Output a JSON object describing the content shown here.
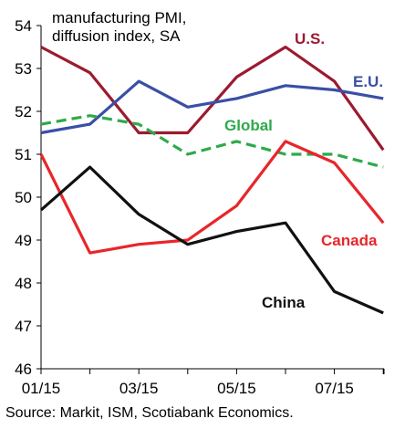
{
  "chart_data": {
    "type": "line",
    "title": "",
    "subtitle_lines": [
      "manufacturing PMI,",
      "diffusion index, SA"
    ],
    "xlabel": "",
    "ylabel": "",
    "x": [
      "01/15",
      "02/15",
      "03/15",
      "04/15",
      "05/15",
      "06/15",
      "07/15",
      "08/15"
    ],
    "x_tick_labels": [
      "01/15",
      "",
      "03/15",
      "",
      "05/15",
      "",
      "07/15",
      ""
    ],
    "ylim": [
      46,
      54
    ],
    "y_ticks": [
      46,
      47,
      48,
      49,
      50,
      51,
      52,
      53,
      54
    ],
    "grid": false,
    "legend": "direct labels",
    "series": [
      {
        "name": "U.S.",
        "color": "#9B1B30",
        "dash": false,
        "values": [
          53.5,
          52.9,
          51.5,
          51.5,
          52.8,
          53.5,
          52.7,
          51.1
        ]
      },
      {
        "name": "E.U.",
        "color": "#3A4FA6",
        "dash": false,
        "values": [
          51.5,
          51.7,
          52.7,
          52.1,
          52.3,
          52.6,
          52.5,
          52.3
        ]
      },
      {
        "name": "Global",
        "color": "#2EAA4A",
        "dash": true,
        "values": [
          51.7,
          51.9,
          51.7,
          51.0,
          51.3,
          51.0,
          51.0,
          50.7
        ]
      },
      {
        "name": "Canada",
        "color": "#E8262A",
        "dash": false,
        "values": [
          51.0,
          48.7,
          48.9,
          49.0,
          49.8,
          51.3,
          50.8,
          49.4
        ]
      },
      {
        "name": "China",
        "color": "#111111",
        "dash": false,
        "values": [
          49.7,
          50.7,
          49.6,
          48.9,
          49.2,
          49.4,
          47.8,
          47.3
        ]
      }
    ],
    "source": "Source: Markit, ISM, Scotiabank Economics."
  }
}
